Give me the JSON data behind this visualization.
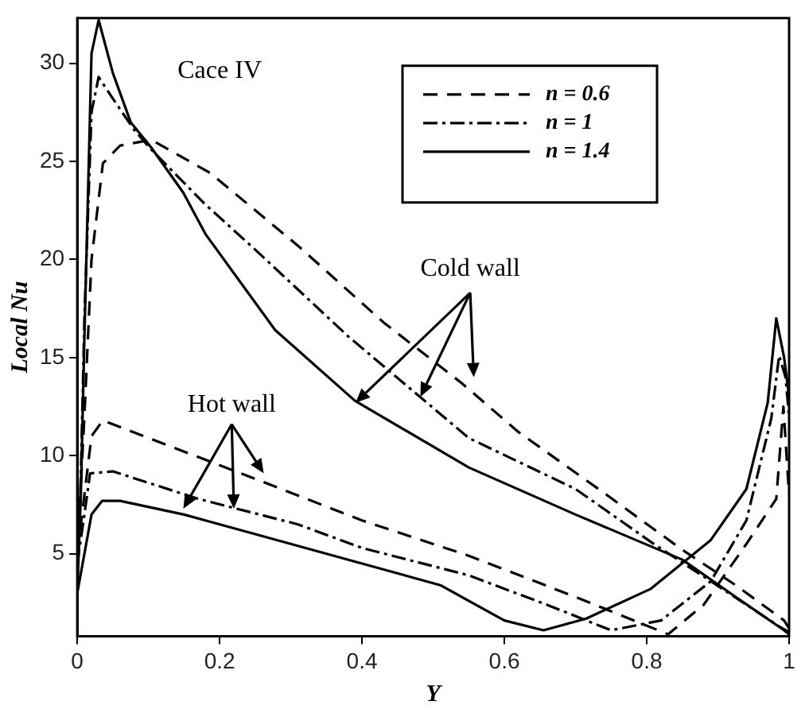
{
  "chart_data": {
    "type": "line",
    "xlabel": "Y",
    "ylabel": "Local Nu",
    "xlim": [
      0,
      1
    ],
    "xticks": [
      0,
      0.2,
      0.4,
      0.6,
      0.8,
      1
    ],
    "ylim": [
      0.8,
      32.3
    ],
    "yticks": [
      5,
      10,
      15,
      20,
      25,
      30
    ],
    "grid": false,
    "legend": "top right",
    "marker": "none",
    "annotations": [
      "Cace IV",
      "Cold wall",
      {
        "text": "Hot wall",
        "x": 0.22,
        "y": 7.3
      }
    ],
    "series": [
      {
        "name": "n = 0.6",
        "color": "#000000",
        "line_style": "dashed",
        "x": [
          0,
          0.01,
          0.02,
          0.036,
          0.06,
          0.104,
          0.187,
          0.31,
          0.43,
          0.54,
          0.62,
          0.74,
          0.85,
          0.925,
          0.993,
          1
        ],
        "values": [
          5,
          12,
          20,
          24.9,
          25.8,
          26.1,
          24.4,
          20.7,
          16.8,
          13.7,
          11.2,
          8.1,
          5.2,
          3.4,
          1.6,
          1.2
        ]
      },
      {
        "name": "n = 1",
        "color": "#000000",
        "line_style": "dashdot",
        "x": [
          0,
          0.005,
          0.01,
          0.02,
          0.03,
          0.05,
          0.08,
          0.104,
          0.18,
          0.25,
          0.38,
          0.55,
          0.7,
          0.81,
          0.89,
          0.986,
          1
        ],
        "values": [
          4,
          9,
          17,
          27.5,
          29.3,
          28.2,
          26.6,
          25.6,
          22.8,
          20.5,
          16.1,
          10.9,
          8.3,
          5.5,
          3.6,
          1.3,
          1
        ]
      },
      {
        "name": "n = 1.4",
        "color": "#000000",
        "line_style": "solid",
        "x": [
          0,
          0.005,
          0.01,
          0.02,
          0.03,
          0.05,
          0.075,
          0.104,
          0.149,
          0.18,
          0.278,
          0.39,
          0.55,
          0.7,
          0.85,
          0.925,
          0.993,
          1
        ],
        "values": [
          3,
          8,
          16,
          30.5,
          32.2,
          29.5,
          27,
          25.7,
          23.4,
          21.3,
          16.4,
          12.8,
          9.4,
          7,
          4.7,
          2.8,
          1.1,
          0.9
        ]
      },
      {
        "color": "#000000",
        "line_style": "dashed",
        "x": [
          0,
          0.01,
          0.02,
          0.036,
          0.1,
          0.23,
          0.4,
          0.55,
          0.7,
          0.83,
          0.88,
          0.94,
          0.982,
          0.992,
          1
        ],
        "values": [
          5,
          8,
          11,
          11.8,
          10.9,
          9.1,
          6.7,
          4.9,
          2.8,
          0.9,
          2.4,
          5.5,
          7.8,
          12.5,
          8
        ]
      },
      {
        "color": "#000000",
        "line_style": "dashdot",
        "x": [
          0,
          0.01,
          0.018,
          0.05,
          0.17,
          0.31,
          0.4,
          0.55,
          0.66,
          0.75,
          0.82,
          0.89,
          0.94,
          0.975,
          0.986,
          0.995,
          1
        ],
        "values": [
          4.5,
          7,
          9.1,
          9.2,
          7.8,
          6.5,
          5.3,
          3.9,
          2.4,
          1.1,
          1.6,
          3.6,
          6.7,
          11.9,
          15.1,
          14,
          12
        ]
      },
      {
        "color": "#000000",
        "line_style": "solid",
        "x": [
          0,
          0.01,
          0.02,
          0.035,
          0.06,
          0.15,
          0.25,
          0.4,
          0.51,
          0.6,
          0.655,
          0.715,
          0.805,
          0.89,
          0.94,
          0.97,
          0.982,
          0.993,
          1
        ],
        "values": [
          3,
          5,
          7,
          7.7,
          7.7,
          7,
          6,
          4.5,
          3.4,
          1.6,
          1.1,
          1.7,
          3.2,
          5.7,
          8.3,
          12.7,
          17,
          15,
          13
        ]
      }
    ]
  }
}
